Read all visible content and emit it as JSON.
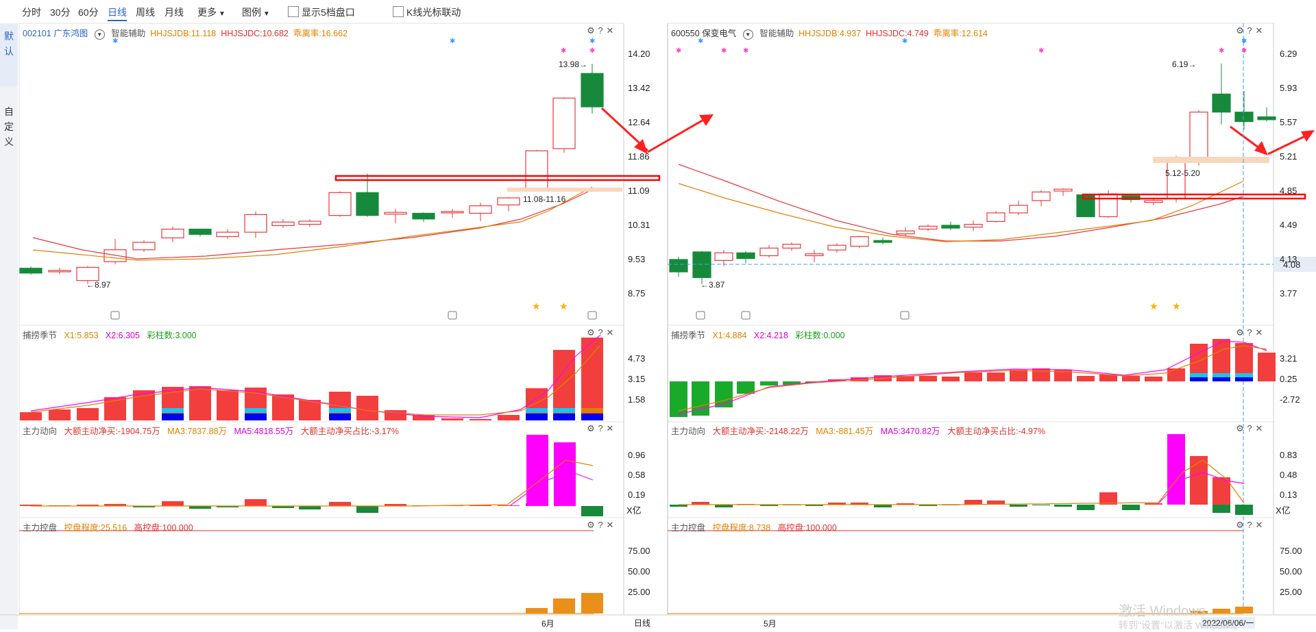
{
  "toolbar": {
    "items": [
      "分时",
      "30分",
      "60分",
      "日线",
      "周线",
      "月线",
      "更多",
      "图例"
    ],
    "active": "日线",
    "show5_label": "显示5档盘口",
    "klink_label": "K线光标联动"
  },
  "sidebar": {
    "default_label": "默认",
    "custom_label": "自定义"
  },
  "left": {
    "code": "002101",
    "name": "广东鸿图",
    "assist": "智能辅助",
    "hhjsjdb": "HHJSJDB:11.118",
    "hhjsjdc": "HHJSJDC:10.682",
    "deviation": "乖离率:16.662",
    "price_ticks": [
      "14.20",
      "13.42",
      "12.64",
      "11.86",
      "11.09",
      "10.31",
      "9.53",
      "8.75"
    ],
    "label_high": "13.98",
    "label_low": "8.97",
    "label_zone": "11.08-11.16",
    "ind1": {
      "name": "捕捞季节",
      "x1": "X1:5.853",
      "x2": "X2:6.305",
      "cai": "彩柱数:3.000",
      "ticks": [
        "4.73",
        "3.15",
        "1.58"
      ]
    },
    "ind2": {
      "name": "主力动向",
      "net": "大额主动净买:-1904.75万",
      "ma3": "MA3:7837.88万",
      "ma5": "MA5:4818.55万",
      "ratio": "大额主动净买占比:-3.17%",
      "ticks": [
        "0.96",
        "0.58",
        "0.19"
      ],
      "unit": "X亿"
    },
    "ind3": {
      "name": "主力控盘",
      "degree": "控盘程度:25.516",
      "high": "高控盘:100.000",
      "ticks": [
        "75.00",
        "50.00",
        "25.00"
      ]
    },
    "month_label": "6月",
    "period_label": "日线"
  },
  "right": {
    "code": "600550",
    "name": "保变电气",
    "assist": "智能辅助",
    "hhjsjdb": "HHJSJDB:4.937",
    "hhjsjdc": "HHJSJDC:4.749",
    "deviation": "乖离率:12.614",
    "price_ticks": [
      "6.29",
      "5.93",
      "5.57",
      "5.21",
      "4.85",
      "4.49",
      "4.13",
      "3.77"
    ],
    "cursor_price": "4.08",
    "label_high": "6.19",
    "label_low": "3.87",
    "label_zone": "5.12-5.20",
    "ind1": {
      "name": "捕捞季节",
      "x1": "X1:4.884",
      "x2": "X2:4.218",
      "cai": "彩柱数:0.000",
      "ticks": [
        "3.21",
        "0.25",
        "-2.72"
      ]
    },
    "ind2": {
      "name": "主力动向",
      "net": "大额主动净买:-2148.22万",
      "ma3": "MA3:-881.45万",
      "ma5": "MA5:3470.82万",
      "ratio": "大额主动净买占比:-4.97%",
      "ticks": [
        "0.83",
        "0.48",
        "0.13"
      ],
      "unit": "X亿"
    },
    "ind3": {
      "name": "主力控盘",
      "degree": "控盘程度:8.738",
      "high": "高控盘:100.000",
      "ticks": [
        "75.00",
        "50.00",
        "25.00"
      ]
    },
    "month_label": "5月",
    "date_label": "2022/06/06/一"
  },
  "watermark": {
    "line1": "激活 Windows",
    "line2": "转到\"设置\"以激活 Windows。"
  },
  "colors": {
    "up": "#e8373a",
    "down": "#168a3a",
    "accent": "#2a64c8",
    "magenta": "#ff00ff",
    "orange": "#e08000"
  }
}
